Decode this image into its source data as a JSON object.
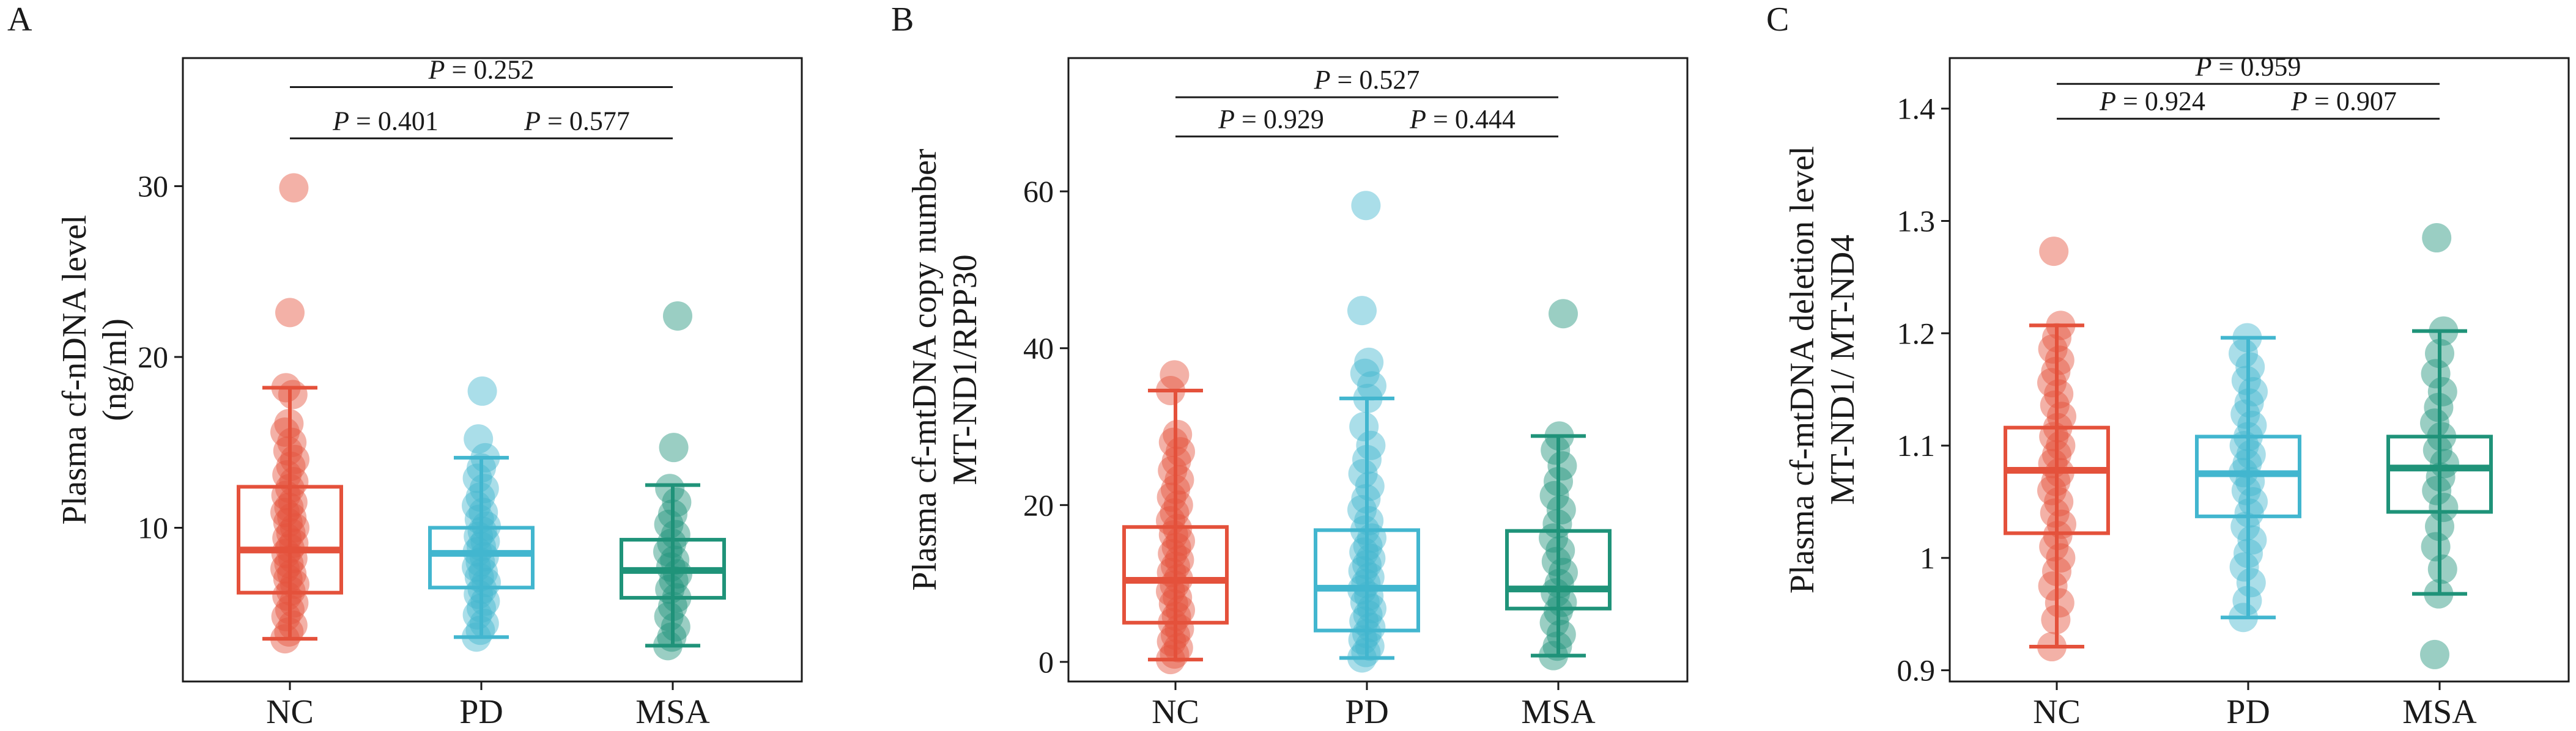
{
  "chart_data": [
    {
      "panel": "A",
      "type": "box",
      "ylabel": [
        "Plasma cf-nDNA level",
        "(ng/ml)"
      ],
      "ylim": [
        1,
        37.5
      ],
      "yticks": [
        10,
        20,
        30
      ],
      "categories": [
        "NC",
        "PD",
        "MSA"
      ],
      "groups": [
        {
          "name": "NC",
          "color": "#e4513b",
          "q1": 6.2,
          "median": 8.7,
          "q3": 12.4,
          "whisker_low": 3.5,
          "whisker_high": 18.2,
          "points": [
            3.5,
            3.9,
            4.3,
            4.8,
            5.2,
            5.6,
            6.0,
            6.3,
            6.7,
            7.0,
            7.3,
            7.6,
            7.9,
            8.2,
            8.5,
            8.8,
            9.1,
            9.4,
            9.7,
            10.0,
            10.3,
            10.6,
            10.9,
            11.2,
            11.5,
            11.9,
            12.3,
            12.7,
            13.1,
            13.6,
            14.0,
            14.5,
            15.0,
            15.6,
            16.1,
            17.8,
            18.2,
            22.6,
            29.9
          ]
        },
        {
          "name": "PD",
          "color": "#42b6cf",
          "q1": 6.5,
          "median": 8.5,
          "q3": 10.0,
          "whisker_low": 3.6,
          "whisker_high": 14.1,
          "points": [
            3.6,
            4.0,
            4.4,
            4.9,
            5.3,
            5.7,
            6.1,
            6.4,
            6.8,
            7.1,
            7.4,
            7.7,
            8.0,
            8.3,
            8.6,
            8.9,
            9.2,
            9.5,
            9.8,
            10.1,
            10.5,
            10.9,
            11.3,
            11.8,
            12.3,
            12.9,
            13.5,
            14.1,
            15.2,
            18.0
          ]
        },
        {
          "name": "MSA",
          "color": "#1f9379",
          "q1": 5.9,
          "median": 7.5,
          "q3": 9.3,
          "whisker_low": 3.1,
          "whisker_high": 12.5,
          "points": [
            3.1,
            3.6,
            4.2,
            4.8,
            5.4,
            5.9,
            6.4,
            6.9,
            7.3,
            7.7,
            8.1,
            8.6,
            9.1,
            9.6,
            10.2,
            10.8,
            11.5,
            12.3,
            14.7,
            22.4
          ]
        }
      ],
      "comparisons": [
        {
          "groups": [
            "NC",
            "MSA"
          ],
          "p_label": "P",
          "p_value": "= 0.252",
          "y": 35.8
        },
        {
          "groups": [
            "NC",
            "PD"
          ],
          "p_label": "P",
          "p_value": "= 0.401",
          "y": 32.8
        },
        {
          "groups": [
            "PD",
            "MSA"
          ],
          "p_label": "P",
          "p_value": "= 0.577",
          "y": 32.8
        }
      ]
    },
    {
      "panel": "B",
      "type": "box",
      "ylabel": [
        "Plasma cf-mtDNA copy number",
        "MT-ND1/RPP30"
      ],
      "ylim": [
        -2.5,
        77
      ],
      "yticks": [
        0,
        20,
        40,
        60
      ],
      "categories": [
        "NC",
        "PD",
        "MSA"
      ],
      "groups": [
        {
          "name": "NC",
          "color": "#e4513b",
          "q1": 5.0,
          "median": 10.4,
          "q3": 17.2,
          "whisker_low": 0.3,
          "whisker_high": 34.6,
          "points": [
            0.3,
            1.0,
            1.8,
            2.6,
            3.4,
            4.2,
            5.0,
            5.8,
            6.6,
            7.4,
            8.2,
            9.0,
            9.8,
            10.6,
            11.4,
            12.2,
            13.0,
            13.8,
            14.6,
            15.4,
            16.2,
            17.0,
            18.0,
            19.0,
            20.0,
            21.0,
            22.0,
            23.2,
            24.4,
            25.6,
            26.8,
            28.0,
            29.0,
            34.6,
            36.6
          ]
        },
        {
          "name": "PD",
          "color": "#42b6cf",
          "q1": 4.0,
          "median": 9.4,
          "q3": 16.8,
          "whisker_low": 0.5,
          "whisker_high": 33.6,
          "points": [
            0.5,
            1.2,
            2.0,
            2.8,
            3.6,
            4.4,
            5.2,
            6.0,
            6.8,
            7.6,
            8.4,
            9.2,
            10.0,
            10.8,
            11.6,
            12.4,
            13.2,
            14.0,
            14.8,
            15.8,
            16.8,
            18.0,
            19.4,
            20.8,
            22.4,
            24.0,
            25.8,
            27.6,
            30.0,
            33.6,
            35.2,
            36.8,
            38.2,
            44.8,
            58.2
          ]
        },
        {
          "name": "MSA",
          "color": "#1f9379",
          "q1": 6.8,
          "median": 9.3,
          "q3": 16.7,
          "whisker_low": 0.8,
          "whisker_high": 28.8,
          "points": [
            0.8,
            2.0,
            3.5,
            5.0,
            6.5,
            7.6,
            8.8,
            10.0,
            11.4,
            12.8,
            14.2,
            15.8,
            17.6,
            19.4,
            21.2,
            23.0,
            25.0,
            27.0,
            28.8,
            44.4
          ]
        }
      ],
      "comparisons": [
        {
          "groups": [
            "NC",
            "MSA"
          ],
          "p_label": "P",
          "p_value": "= 0.527",
          "y": 72.0
        },
        {
          "groups": [
            "NC",
            "PD"
          ],
          "p_label": "P",
          "p_value": "= 0.929",
          "y": 67.0
        },
        {
          "groups": [
            "PD",
            "MSA"
          ],
          "p_label": "P",
          "p_value": "= 0.444",
          "y": 67.0
        }
      ]
    },
    {
      "panel": "C",
      "type": "box",
      "ylabel": [
        "Plasma cf-mtDNA deletion level",
        "MT-ND1/ MT-ND4"
      ],
      "ylim": [
        0.89,
        1.445
      ],
      "yticks": [
        0.9,
        1.0,
        1.1,
        1.2,
        1.3,
        1.4
      ],
      "categories": [
        "NC",
        "PD",
        "MSA"
      ],
      "groups": [
        {
          "name": "NC",
          "color": "#e4513b",
          "q1": 1.022,
          "median": 1.078,
          "q3": 1.116,
          "whisker_low": 0.921,
          "whisker_high": 1.207,
          "points": [
            0.921,
            0.945,
            0.96,
            0.975,
            0.988,
            1.0,
            1.01,
            1.02,
            1.03,
            1.04,
            1.05,
            1.06,
            1.068,
            1.076,
            1.084,
            1.092,
            1.1,
            1.108,
            1.116,
            1.126,
            1.136,
            1.146,
            1.156,
            1.166,
            1.176,
            1.186,
            1.196,
            1.207,
            1.273
          ]
        },
        {
          "name": "PD",
          "color": "#42b6cf",
          "q1": 1.037,
          "median": 1.075,
          "q3": 1.108,
          "whisker_low": 0.947,
          "whisker_high": 1.196,
          "points": [
            0.947,
            0.962,
            0.978,
            0.992,
            1.004,
            1.016,
            1.028,
            1.04,
            1.05,
            1.06,
            1.068,
            1.076,
            1.084,
            1.092,
            1.1,
            1.108,
            1.118,
            1.128,
            1.138,
            1.148,
            1.158,
            1.17,
            1.182,
            1.196
          ]
        },
        {
          "name": "MSA",
          "color": "#1f9379",
          "q1": 1.041,
          "median": 1.08,
          "q3": 1.108,
          "whisker_low": 0.968,
          "whisker_high": 1.202,
          "points": [
            0.914,
            0.968,
            0.99,
            1.01,
            1.028,
            1.045,
            1.06,
            1.072,
            1.084,
            1.096,
            1.108,
            1.12,
            1.134,
            1.148,
            1.164,
            1.182,
            1.202,
            1.285
          ]
        }
      ],
      "comparisons": [
        {
          "groups": [
            "NC",
            "MSA"
          ],
          "p_label": "P",
          "p_value": "= 0.959",
          "y": 1.422
        },
        {
          "groups": [
            "NC",
            "PD"
          ],
          "p_label": "P",
          "p_value": "= 0.924",
          "y": 1.391
        },
        {
          "groups": [
            "PD",
            "MSA"
          ],
          "p_label": "P",
          "p_value": "= 0.907",
          "y": 1.391
        }
      ]
    }
  ]
}
